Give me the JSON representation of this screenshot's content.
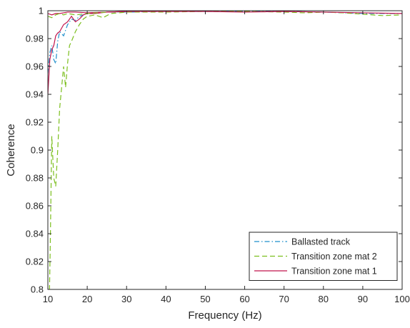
{
  "chart_data": {
    "type": "line",
    "title": "",
    "xlabel": "Frequency (Hz)",
    "ylabel": "Coherence",
    "xlim": [
      10,
      100
    ],
    "ylim": [
      0.8,
      1.0
    ],
    "xticks": [
      10,
      20,
      30,
      40,
      50,
      60,
      70,
      80,
      90,
      100
    ],
    "yticks": [
      0.8,
      0.82,
      0.84,
      0.86,
      0.88,
      0.9,
      0.92,
      0.94,
      0.96,
      0.98,
      1
    ],
    "ytick_labels": [
      "0.8",
      "0.82",
      "0.84",
      "0.86",
      "0.88",
      "0.9",
      "0.92",
      "0.94",
      "0.96",
      "0.98",
      "1"
    ],
    "grid": false,
    "legend_position": "bottom-right",
    "series": [
      {
        "name": "Ballasted track",
        "color": "#1f8fcc",
        "dash": "dash-dot",
        "x": [
          10,
          10.5,
          11,
          11.5,
          12,
          12.5,
          13,
          14,
          15,
          16,
          17,
          18,
          19,
          20,
          22,
          25,
          30,
          40,
          50,
          60,
          70,
          80,
          90,
          100
        ],
        "y": [
          0.955,
          0.97,
          0.975,
          0.965,
          0.962,
          0.978,
          0.985,
          0.982,
          0.99,
          0.994,
          0.993,
          0.996,
          0.997,
          0.998,
          0.9985,
          0.999,
          0.999,
          0.9995,
          0.9995,
          0.9995,
          0.9995,
          0.999,
          0.998,
          0.998
        ]
      },
      {
        "name": "Transition zone mat 2",
        "color": "#7cbf1f",
        "dash": "dashed",
        "x": [
          10,
          10.3,
          10.6,
          11,
          11.5,
          12,
          12.5,
          13,
          13.5,
          14,
          14.5,
          15,
          15.5,
          16,
          17,
          18,
          19,
          20,
          22,
          24,
          26,
          30,
          40,
          50,
          60,
          70,
          75,
          80,
          85,
          90,
          95,
          100
        ],
        "y": [
          0.8,
          0.78,
          0.83,
          0.91,
          0.88,
          0.874,
          0.9,
          0.93,
          0.945,
          0.96,
          0.945,
          0.962,
          0.975,
          0.978,
          0.985,
          0.99,
          0.994,
          0.996,
          0.997,
          0.995,
          0.998,
          0.999,
          0.999,
          0.9995,
          0.9995,
          0.999,
          0.9985,
          0.999,
          0.9985,
          0.9975,
          0.9965,
          0.997
        ]
      },
      {
        "name": "Transition zone mat 1",
        "color": "#c0144c",
        "dash": "solid",
        "x": [
          10,
          10.5,
          11,
          11.5,
          12,
          12.5,
          13,
          14,
          15,
          16,
          17,
          18,
          19,
          20,
          22,
          25,
          30,
          40,
          50,
          60,
          70,
          80,
          90,
          100
        ],
        "y": [
          0.94,
          0.965,
          0.972,
          0.975,
          0.982,
          0.984,
          0.985,
          0.99,
          0.992,
          0.996,
          0.992,
          0.994,
          0.997,
          0.998,
          0.998,
          0.999,
          0.9995,
          0.9995,
          0.9995,
          0.999,
          0.9995,
          0.999,
          0.9985,
          0.998
        ]
      },
      {
        "name": "",
        "color": "#c0144c",
        "dash": "solid",
        "x": [
          10,
          11,
          12,
          13,
          14,
          15,
          17,
          20,
          25,
          30
        ],
        "y": [
          0.998,
          0.997,
          0.998,
          0.998,
          0.9985,
          0.999,
          0.999,
          0.9985,
          0.999,
          0.9995
        ]
      },
      {
        "name": "",
        "color": "#7cbf1f",
        "dash": "dashed",
        "x": [
          10,
          11,
          12,
          13,
          14,
          15,
          17,
          20,
          25
        ],
        "y": [
          0.996,
          0.995,
          0.997,
          0.998,
          0.997,
          0.998,
          0.997,
          0.998,
          0.999
        ]
      }
    ]
  }
}
